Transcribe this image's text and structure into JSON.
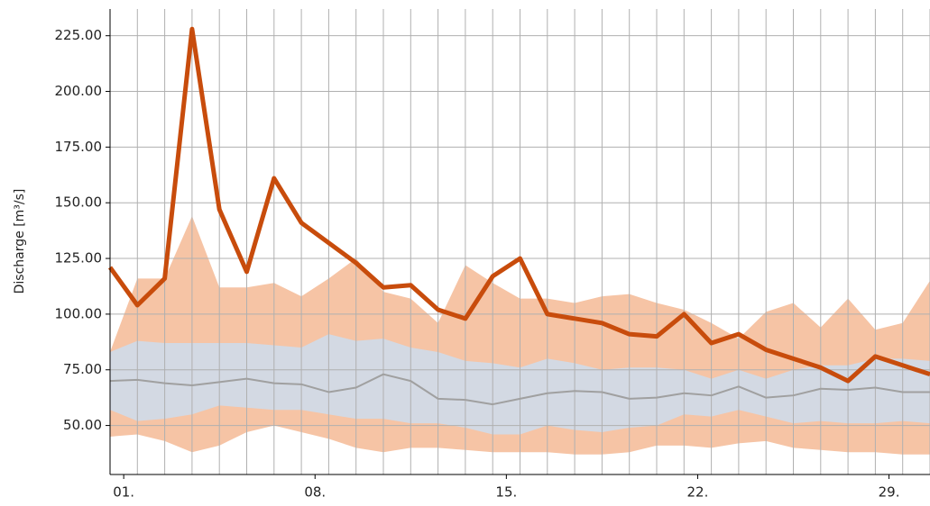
{
  "chart_data": {
    "type": "line",
    "ylabel": "Discharge [m³/s]",
    "x": [
      0,
      1,
      2,
      3,
      4,
      5,
      6,
      7,
      8,
      9,
      10,
      11,
      12,
      13,
      14,
      15,
      16,
      17,
      18,
      19,
      20,
      21,
      22,
      23,
      24,
      25,
      26,
      27,
      28,
      29,
      30
    ],
    "xlim": [
      0,
      30
    ],
    "xticks": [
      {
        "value": 0.5,
        "label": "01."
      },
      {
        "value": 7.5,
        "label": "08."
      },
      {
        "value": 14.5,
        "label": "15."
      },
      {
        "value": 21.5,
        "label": "22."
      },
      {
        "value": 28.5,
        "label": "29."
      }
    ],
    "ylim": [
      28,
      237
    ],
    "yticks": [
      {
        "value": 50,
        "label": "50.00"
      },
      {
        "value": 75,
        "label": "75.00"
      },
      {
        "value": 100,
        "label": "100.00"
      },
      {
        "value": 125,
        "label": "125.00"
      },
      {
        "value": 150,
        "label": "150.00"
      },
      {
        "value": 175,
        "label": "175.00"
      },
      {
        "value": 200,
        "label": "200.00"
      },
      {
        "value": 225,
        "label": "225.00"
      }
    ],
    "grid": true,
    "bands": [
      {
        "color": "#f6c4a5",
        "upper": [
          83,
          116,
          116,
          144,
          112,
          112,
          114,
          108,
          116,
          125,
          110,
          107,
          96,
          122,
          114,
          107,
          107,
          105,
          108,
          109,
          105,
          102,
          96,
          89,
          101,
          105,
          94,
          107,
          93,
          96,
          115
        ],
        "lower": [
          45,
          46,
          43,
          38,
          41,
          47,
          50,
          47,
          44,
          40,
          38,
          40,
          40,
          39,
          38,
          38,
          38,
          37,
          37,
          38,
          41,
          41,
          40,
          42,
          43,
          40,
          39,
          38,
          38,
          37,
          37
        ]
      },
      {
        "color": "#d3d9e3",
        "upper": [
          83,
          88,
          87,
          87,
          87,
          87,
          86,
          85,
          91,
          88,
          89,
          85,
          83,
          79,
          78,
          76,
          80,
          78,
          75,
          76,
          76,
          75,
          71,
          75,
          71,
          75,
          77,
          77,
          80,
          80,
          79
        ],
        "lower": [
          57,
          52,
          53,
          55,
          59,
          58,
          57,
          57,
          55,
          53,
          53,
          51,
          51,
          49,
          46,
          46,
          50,
          48,
          47,
          49,
          50,
          55,
          54,
          57,
          54,
          51,
          52,
          51,
          51,
          52,
          51
        ]
      }
    ],
    "series": [
      {
        "color": "#a0a0a0",
        "width": 2,
        "values": [
          70,
          70.5,
          69,
          68,
          69.5,
          71,
          69,
          68.5,
          65,
          67,
          73,
          70,
          62,
          61.5,
          59.5,
          62,
          64.5,
          65.5,
          65,
          62,
          62.5,
          64.5,
          63.5,
          67.5,
          62.5,
          63.5,
          66.5,
          66,
          67,
          65,
          65
        ]
      },
      {
        "color": "#c84c0c",
        "width": 5,
        "values": [
          121,
          104,
          116,
          228,
          147,
          119,
          161,
          141,
          132,
          123,
          112,
          113,
          102,
          98,
          117,
          125,
          100,
          98,
          96,
          91,
          90,
          100,
          87,
          91,
          84,
          80,
          76,
          70,
          81,
          77,
          73
        ]
      }
    ]
  }
}
